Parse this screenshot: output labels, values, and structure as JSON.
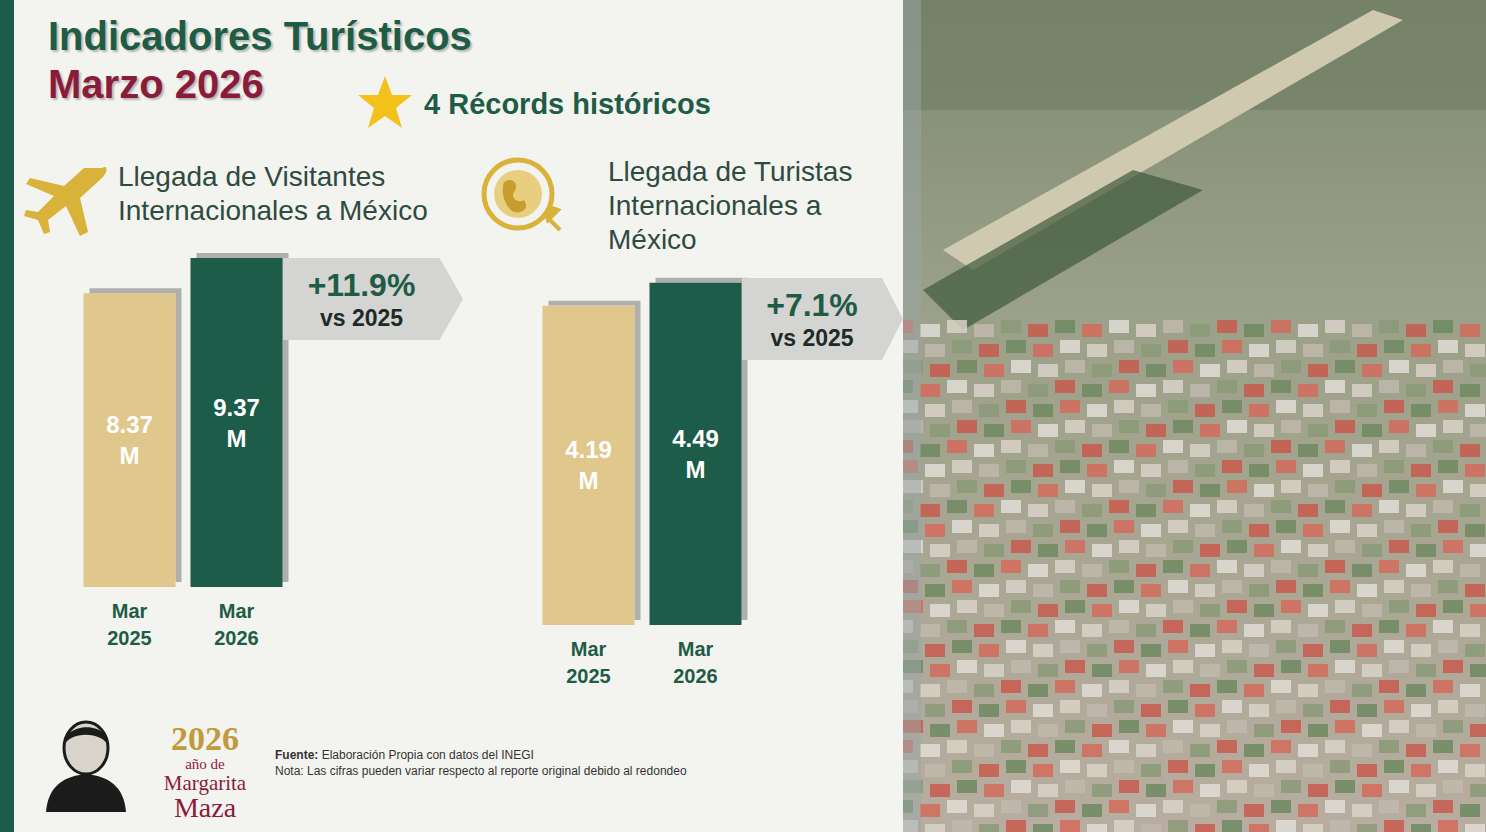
{
  "header": {
    "title": "Indicadores Turísticos",
    "subtitle": "Marzo 2026",
    "badge": "4 Récords históricos"
  },
  "chart_data": [
    {
      "type": "bar",
      "title": "Llegada de Visitantes Internacionales a México",
      "categories": [
        "Mar 2025",
        "Mar 2026"
      ],
      "values": [
        8.37,
        9.37
      ],
      "value_labels": [
        "8.37 M",
        "9.37 M"
      ],
      "colors": [
        "#e0c88c",
        "#1e5b4a"
      ],
      "ylim": [
        0,
        10
      ],
      "grid": false,
      "tick_labels": "x",
      "data_labels": true,
      "annotations": [
        "+11.9%",
        "vs 2025"
      ]
    },
    {
      "type": "bar",
      "title": "Llegada de Turistas Internacionales a México",
      "categories": [
        "Mar 2025",
        "Mar 2026"
      ],
      "values": [
        4.19,
        4.49
      ],
      "value_labels": [
        "4.19 M",
        "4.49 M"
      ],
      "colors": [
        "#e0c88c",
        "#1e5b4a"
      ],
      "ylim": [
        0,
        5
      ],
      "grid": false,
      "tick_labels": "x",
      "data_labels": true,
      "annotations": [
        "+7.1%",
        "vs 2025"
      ]
    }
  ],
  "footer": {
    "logo": [
      "2026",
      "año de",
      "Margarita",
      "Maza"
    ],
    "source_label": "Fuente:",
    "source": "Elaboración Propia con datos del INEGI",
    "note": "Nota: Las cifras pueden variar respecto al reporte original debido al redondeo"
  }
}
